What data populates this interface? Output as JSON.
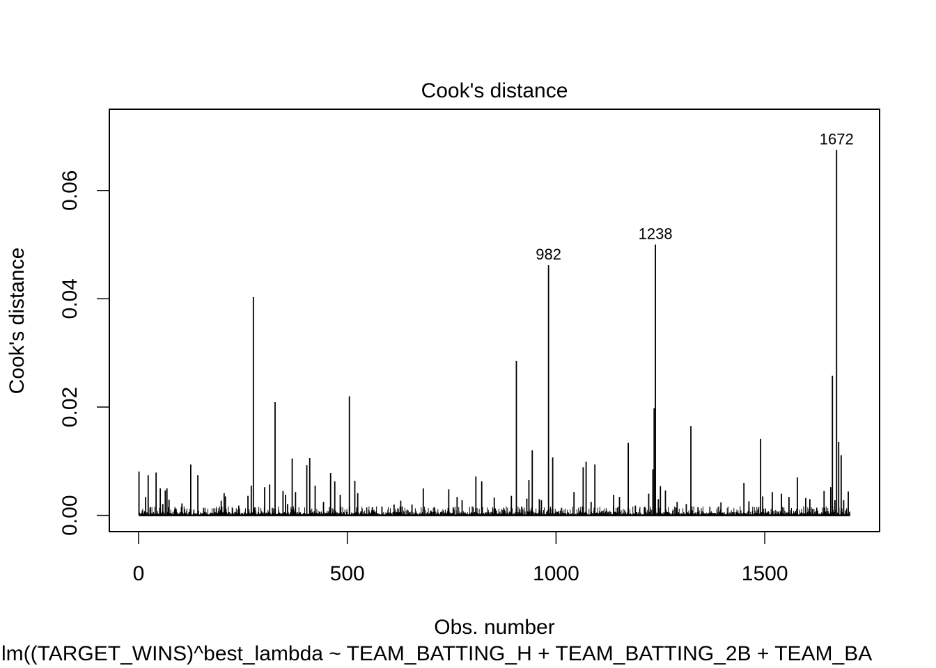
{
  "chart_data": {
    "type": "bar",
    "title": "Cook's distance",
    "xlabel": "Obs. number",
    "ylabel": "Cook's distance",
    "subtitle": "lm((TARGET_WINS)^best_lambda ~ TEAM_BATTING_H + TEAM_BATTING_2B + TEAM_BA",
    "xlim": [
      -70,
      1775
    ],
    "ylim": [
      -0.003,
      0.075
    ],
    "x_ticks": [
      0,
      500,
      1000,
      1500
    ],
    "x_tick_labels": [
      "0",
      "500",
      "1000",
      "1500"
    ],
    "y_ticks": [
      0.0,
      0.02,
      0.04,
      0.06
    ],
    "y_tick_labels": [
      "0.00",
      "0.02",
      "0.04",
      "0.06"
    ],
    "n_obs": 1704,
    "grid": false,
    "points": [
      {
        "x": 1,
        "y": 0.0081
      },
      {
        "x": 9,
        "y": 0.0009
      },
      {
        "x": 17,
        "y": 0.0034
      },
      {
        "x": 23,
        "y": 0.0074
      },
      {
        "x": 28,
        "y": 0.0011
      },
      {
        "x": 42,
        "y": 0.0079
      },
      {
        "x": 52,
        "y": 0.005
      },
      {
        "x": 58,
        "y": 0.0021
      },
      {
        "x": 64,
        "y": 0.0046
      },
      {
        "x": 68,
        "y": 0.005
      },
      {
        "x": 73,
        "y": 0.0029
      },
      {
        "x": 90,
        "y": 0.0012
      },
      {
        "x": 104,
        "y": 0.0022
      },
      {
        "x": 125,
        "y": 0.0094
      },
      {
        "x": 142,
        "y": 0.0074
      },
      {
        "x": 156,
        "y": 0.0014
      },
      {
        "x": 198,
        "y": 0.0027
      },
      {
        "x": 205,
        "y": 0.0041
      },
      {
        "x": 208,
        "y": 0.0035
      },
      {
        "x": 225,
        "y": 0.0013
      },
      {
        "x": 240,
        "y": 0.0018
      },
      {
        "x": 262,
        "y": 0.0036
      },
      {
        "x": 270,
        "y": 0.0055
      },
      {
        "x": 275,
        "y": 0.0403
      },
      {
        "x": 302,
        "y": 0.0052
      },
      {
        "x": 314,
        "y": 0.0057
      },
      {
        "x": 327,
        "y": 0.0209
      },
      {
        "x": 346,
        "y": 0.0045
      },
      {
        "x": 352,
        "y": 0.0038
      },
      {
        "x": 357,
        "y": 0.0021
      },
      {
        "x": 368,
        "y": 0.0105
      },
      {
        "x": 376,
        "y": 0.0043
      },
      {
        "x": 403,
        "y": 0.0093
      },
      {
        "x": 410,
        "y": 0.0106
      },
      {
        "x": 423,
        "y": 0.0055
      },
      {
        "x": 443,
        "y": 0.0025
      },
      {
        "x": 460,
        "y": 0.0078
      },
      {
        "x": 470,
        "y": 0.0063
      },
      {
        "x": 483,
        "y": 0.0038
      },
      {
        "x": 505,
        "y": 0.022
      },
      {
        "x": 518,
        "y": 0.0064
      },
      {
        "x": 525,
        "y": 0.0041
      },
      {
        "x": 560,
        "y": 0.0015
      },
      {
        "x": 583,
        "y": 0.0016
      },
      {
        "x": 612,
        "y": 0.002
      },
      {
        "x": 628,
        "y": 0.0027
      },
      {
        "x": 655,
        "y": 0.002
      },
      {
        "x": 682,
        "y": 0.005
      },
      {
        "x": 743,
        "y": 0.0048
      },
      {
        "x": 763,
        "y": 0.0034
      },
      {
        "x": 775,
        "y": 0.0028
      },
      {
        "x": 808,
        "y": 0.0072
      },
      {
        "x": 822,
        "y": 0.0063
      },
      {
        "x": 852,
        "y": 0.0033
      },
      {
        "x": 893,
        "y": 0.0036
      },
      {
        "x": 905,
        "y": 0.0285
      },
      {
        "x": 930,
        "y": 0.0031
      },
      {
        "x": 935,
        "y": 0.0065
      },
      {
        "x": 943,
        "y": 0.012
      },
      {
        "x": 960,
        "y": 0.003
      },
      {
        "x": 965,
        "y": 0.0028
      },
      {
        "x": 982,
        "y": 0.0462
      },
      {
        "x": 992,
        "y": 0.0107
      },
      {
        "x": 1043,
        "y": 0.0043
      },
      {
        "x": 1065,
        "y": 0.0089
      },
      {
        "x": 1072,
        "y": 0.0099
      },
      {
        "x": 1084,
        "y": 0.0025
      },
      {
        "x": 1093,
        "y": 0.0094
      },
      {
        "x": 1138,
        "y": 0.0038
      },
      {
        "x": 1152,
        "y": 0.0034
      },
      {
        "x": 1173,
        "y": 0.0134
      },
      {
        "x": 1190,
        "y": 0.0018
      },
      {
        "x": 1222,
        "y": 0.004
      },
      {
        "x": 1232,
        "y": 0.0085
      },
      {
        "x": 1235,
        "y": 0.0198
      },
      {
        "x": 1238,
        "y": 0.05
      },
      {
        "x": 1245,
        "y": 0.003
      },
      {
        "x": 1250,
        "y": 0.0054
      },
      {
        "x": 1262,
        "y": 0.0046
      },
      {
        "x": 1290,
        "y": 0.0025
      },
      {
        "x": 1312,
        "y": 0.0021
      },
      {
        "x": 1323,
        "y": 0.0165
      },
      {
        "x": 1340,
        "y": 0.0015
      },
      {
        "x": 1395,
        "y": 0.0024
      },
      {
        "x": 1450,
        "y": 0.006
      },
      {
        "x": 1462,
        "y": 0.0026
      },
      {
        "x": 1490,
        "y": 0.0141
      },
      {
        "x": 1495,
        "y": 0.0035
      },
      {
        "x": 1518,
        "y": 0.0043
      },
      {
        "x": 1540,
        "y": 0.004
      },
      {
        "x": 1558,
        "y": 0.0034
      },
      {
        "x": 1578,
        "y": 0.007
      },
      {
        "x": 1598,
        "y": 0.0032
      },
      {
        "x": 1608,
        "y": 0.003
      },
      {
        "x": 1642,
        "y": 0.0045
      },
      {
        "x": 1658,
        "y": 0.0052
      },
      {
        "x": 1662,
        "y": 0.0258
      },
      {
        "x": 1668,
        "y": 0.0028
      },
      {
        "x": 1672,
        "y": 0.0675
      },
      {
        "x": 1677,
        "y": 0.0136
      },
      {
        "x": 1683,
        "y": 0.0111
      },
      {
        "x": 1689,
        "y": 0.0028
      },
      {
        "x": 1700,
        "y": 0.0044
      }
    ],
    "labels": [
      {
        "text": "982",
        "x": 982,
        "y": 0.0462
      },
      {
        "text": "1238",
        "x": 1238,
        "y": 0.05
      },
      {
        "text": "1672",
        "x": 1672,
        "y": 0.0675
      }
    ]
  }
}
